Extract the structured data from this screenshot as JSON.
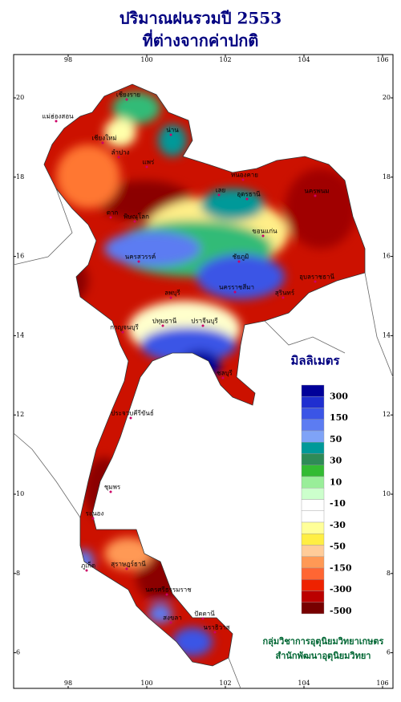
{
  "header": {
    "title": "ปริมาณฝนรวมปี  2553",
    "subtitle": "ที่ต่างจากค่าปกติ"
  },
  "map": {
    "lon_ticks": [
      98,
      100,
      102,
      104,
      106
    ],
    "lat_ticks": [
      6,
      8,
      10,
      12,
      14,
      16,
      18,
      20
    ],
    "places": [
      "แม่ฮ่องสอน",
      "เชียงราย",
      "เชียงใหม่",
      "น่าน",
      "ลำปาง",
      "แพร่",
      "เลย",
      "หนองคาย",
      "นครพนม",
      "อุดรธานี",
      "ขอนแก่น",
      "พิษณุโลก",
      "ตาก",
      "นครสวรรค์",
      "ชัยภูมิ",
      "นครราชสีมา",
      "สุรินทร์",
      "อุบลราชธานี",
      "ลพบุรี",
      "กาญจนบุรี",
      "ปทุมธานี",
      "ปราจีนบุรี",
      "ชลบุรี",
      "ประจวบคีรีขันธ์",
      "ชุมพร",
      "ระนอง",
      "สุราษฎร์ธานี",
      "นครศรีธรรมราช",
      "ภูเก็ต",
      "สงขลา",
      "ปัตตานี",
      "นราธิวาส"
    ]
  },
  "legend": {
    "title": "มิลลิเมตร",
    "labels": [
      300,
      150,
      50,
      30,
      10,
      -10,
      -30,
      -50,
      -150,
      -300,
      -500
    ],
    "colors": [
      "#000099",
      "#1f2fd0",
      "#3b55e6",
      "#5c7cf2",
      "#7fa3f7",
      "#009999",
      "#2e8b57",
      "#33bb33",
      "#99ee99",
      "#ccffcc",
      "#ffffff",
      "#ffffff",
      "#ffff99",
      "#ffee44",
      "#ffcc99",
      "#ff9955",
      "#ff6633",
      "#ee2200",
      "#bb0000",
      "#770000"
    ]
  },
  "footer": {
    "line1": "กลุ่มวิชาการอุตุนิยมวิทยาเกษตร",
    "line2": "สำนักพัฒนาอุตุนิยมวิทยา"
  }
}
